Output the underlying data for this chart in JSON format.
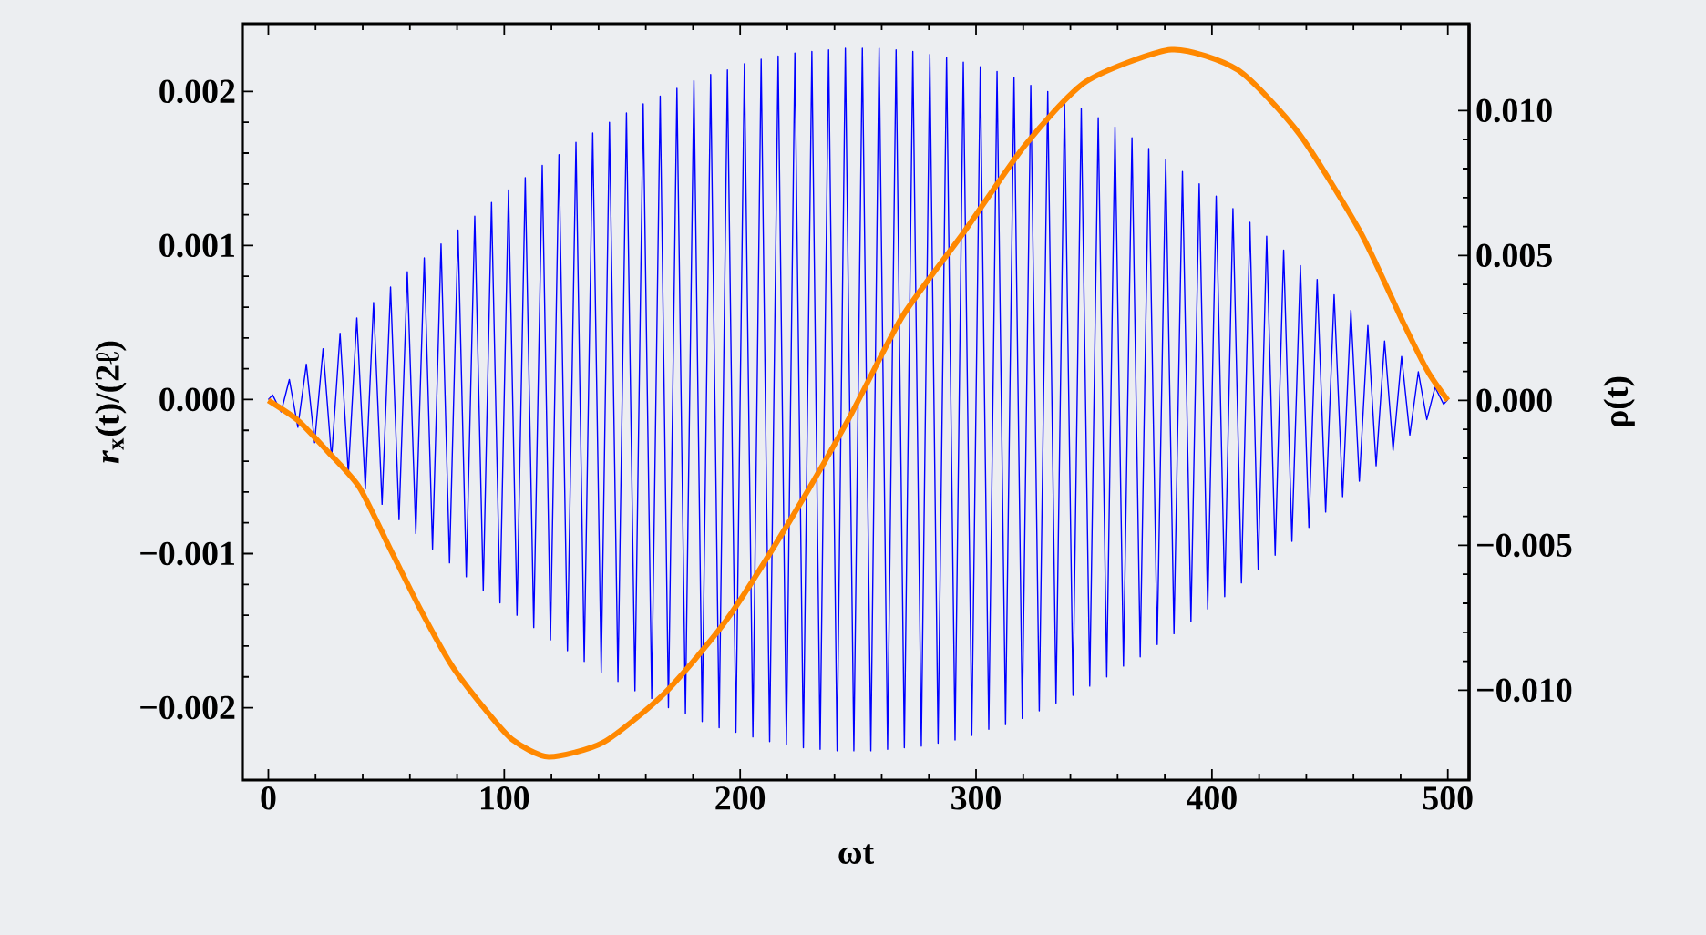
{
  "chart_data": {
    "type": "line",
    "xlabel": "ωt",
    "ylabel": "*r*$_{x}$(t)/(2ℓ)",
    "y2label": "ρ(t)",
    "xlim": [
      -11,
      509
    ],
    "xticks": [
      0,
      100,
      200,
      300,
      400,
      500
    ],
    "ylim": [
      -0.00247,
      0.00244
    ],
    "yticks": [
      {
        "value": -0.002,
        "label": "−0.002"
      },
      {
        "value": -0.001,
        "label": "−0.001"
      },
      {
        "value": 0,
        "label": "0.000"
      },
      {
        "value": 0.001,
        "label": "0.001"
      },
      {
        "value": 0.002,
        "label": "0.002"
      }
    ],
    "y2lim": [
      -0.0131,
      0.013
    ],
    "y2ticks": [
      {
        "value": -0.01,
        "label": "−0.010"
      },
      {
        "value": -0.005,
        "label": "−0.005"
      },
      {
        "value": 0,
        "label": "0.000"
      },
      {
        "value": 0.005,
        "label": "0.005"
      },
      {
        "value": 0.01,
        "label": "0.010"
      }
    ],
    "series": [
      {
        "color": "#0000ff",
        "x": [
          0,
          1.8,
          5.4,
          8.9,
          12.5,
          16.1,
          19.6,
          23.2,
          26.8,
          30.4,
          33.9,
          37.5,
          41.1,
          44.6,
          48.2,
          51.8,
          55.4,
          58.9,
          62.5,
          66.1,
          69.6,
          73.2,
          76.8,
          80.4,
          83.9,
          87.5,
          91.1,
          94.6,
          98.2,
          101.8,
          105.4,
          108.9,
          112.5,
          116.1,
          119.6,
          123.2,
          126.8,
          130.4,
          133.9,
          137.5,
          141.1,
          144.6,
          148.2,
          151.8,
          155.4,
          158.9,
          162.5,
          166.1,
          169.6,
          173.2,
          176.8,
          180.4,
          183.9,
          187.5,
          191.1,
          194.6,
          198.2,
          201.8,
          205.4,
          208.9,
          212.5,
          216.1,
          219.6,
          223.2,
          226.8,
          230.4,
          233.9,
          237.5,
          241.1,
          244.6,
          248.2,
          251.8,
          255.4,
          258.9,
          262.5,
          266.1,
          269.6,
          273.2,
          276.8,
          280.4,
          283.9,
          287.5,
          291.1,
          294.6,
          298.2,
          301.8,
          305.4,
          308.9,
          312.5,
          316.1,
          319.6,
          323.2,
          326.8,
          330.4,
          333.9,
          337.5,
          341.1,
          344.6,
          348.2,
          351.8,
          355.4,
          358.9,
          362.5,
          366.1,
          369.6,
          373.2,
          376.8,
          380.4,
          383.9,
          387.5,
          391.1,
          394.6,
          398.2,
          401.8,
          405.4,
          408.9,
          412.5,
          416.1,
          419.6,
          423.2,
          426.8,
          430.4,
          433.9,
          437.5,
          441.1,
          444.6,
          448.2,
          451.8,
          455.4,
          458.9,
          462.5,
          466.1,
          469.6,
          473.2,
          476.8,
          480.4,
          483.9,
          487.5,
          491.1,
          494.6,
          498.2,
          500
        ],
        "values": [
          0,
          3e-05,
          -8e-05,
          0.00013,
          -0.00018,
          0.00023,
          -0.00028,
          0.00033,
          -0.00038,
          0.00043,
          -0.00048,
          0.00053,
          -0.00058,
          0.00063,
          -0.00068,
          0.00073,
          -0.00078,
          0.00083,
          -0.00087,
          0.00092,
          -0.00097,
          0.00101,
          -0.00106,
          0.0011,
          -0.00115,
          0.00119,
          -0.00124,
          0.00128,
          -0.00132,
          0.00136,
          -0.0014,
          0.00144,
          -0.00148,
          0.00152,
          -0.00156,
          0.00159,
          -0.00163,
          0.00167,
          -0.0017,
          0.00173,
          -0.00177,
          0.0018,
          -0.00183,
          0.00186,
          -0.00189,
          0.00192,
          -0.00194,
          0.00197,
          -0.002,
          0.00202,
          -0.00204,
          0.00207,
          -0.00209,
          0.00211,
          -0.00213,
          0.00214,
          -0.00216,
          0.00218,
          -0.00219,
          0.00221,
          -0.00222,
          0.00223,
          -0.00224,
          0.00225,
          -0.00226,
          0.00226,
          -0.00227,
          0.00227,
          -0.00228,
          0.00228,
          -0.00228,
          0.00228,
          -0.00228,
          0.00228,
          -0.00227,
          0.00227,
          -0.00226,
          0.00226,
          -0.00225,
          0.00224,
          -0.00223,
          0.00222,
          -0.00221,
          0.00219,
          -0.00218,
          0.00216,
          -0.00214,
          0.00213,
          -0.00211,
          0.00209,
          -0.00207,
          0.00204,
          -0.00202,
          0.002,
          -0.00197,
          0.00194,
          -0.00192,
          0.00189,
          -0.00186,
          0.00183,
          -0.0018,
          0.00177,
          -0.00173,
          0.0017,
          -0.00167,
          0.00163,
          -0.00159,
          0.00156,
          -0.00152,
          0.00148,
          -0.00144,
          0.0014,
          -0.00136,
          0.00132,
          -0.00128,
          0.00124,
          -0.00119,
          0.00115,
          -0.0011,
          0.00106,
          -0.00101,
          0.00097,
          -0.00092,
          0.00087,
          -0.00083,
          0.00078,
          -0.00073,
          0.00068,
          -0.00063,
          0.00058,
          -0.00053,
          0.00048,
          -0.00043,
          0.00038,
          -0.00033,
          0.00028,
          -0.00023,
          0.00018,
          -0.00013,
          8e-05,
          -3e-05,
          0
        ]
      },
      {
        "color": "#ff8800",
        "axis": "y2",
        "x": [
          0,
          12.7,
          25.6,
          38.6,
          51.5,
          64.4,
          77.4,
          90.3,
          103.3,
          118.8,
          142,
          168,
          194,
          220,
          245.6,
          268.8,
          294.8,
          320.7,
          346.6,
          382.8,
          411,
          437,
          463,
          481,
          491.5,
          500
        ],
        "values": [
          0,
          -0.0007,
          -0.0018,
          -0.003,
          -0.0051,
          -0.0072,
          -0.0091,
          -0.0105,
          -0.0117,
          -0.0123,
          -0.0118,
          -0.0101,
          -0.0076,
          -0.0043,
          -0.0007,
          0.0029,
          0.0058,
          0.0088,
          0.011,
          0.0121,
          0.0114,
          0.0092,
          0.0058,
          0.0027,
          0.001,
          0
        ]
      }
    ]
  }
}
